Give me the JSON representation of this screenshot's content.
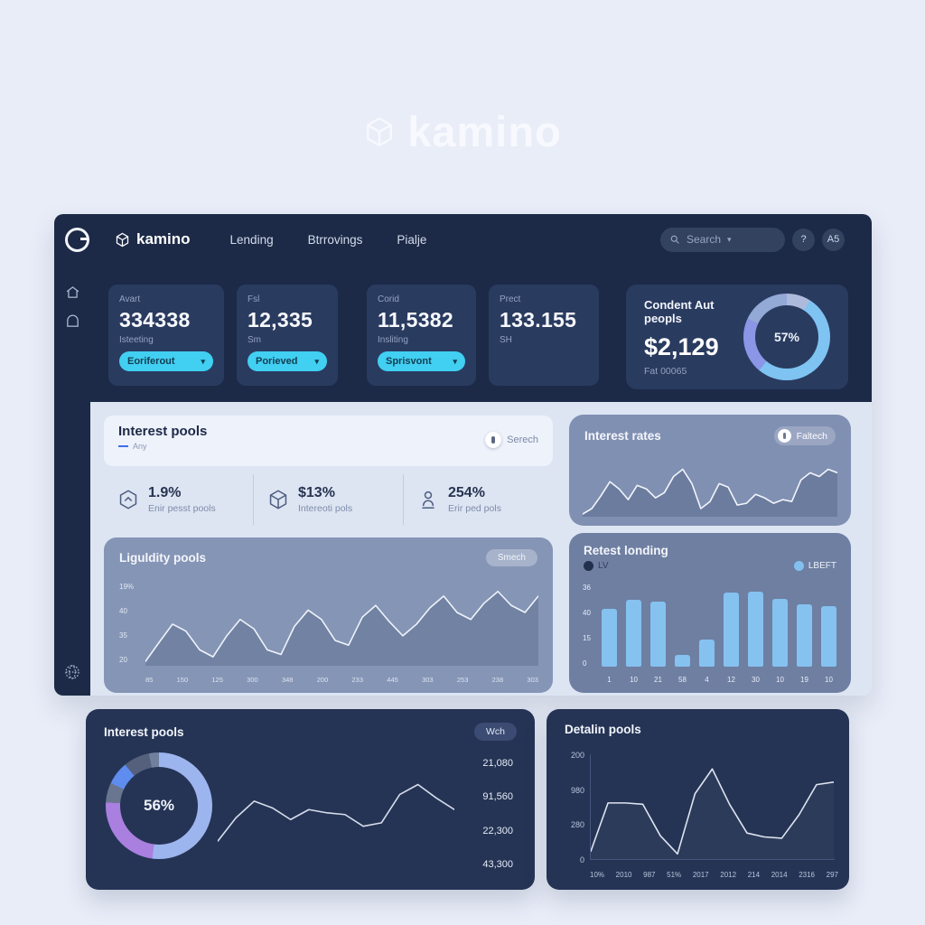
{
  "page": {
    "watermark_brand": "kamino"
  },
  "topnav": {
    "brand": "kamino",
    "items": [
      {
        "label": "Lending"
      },
      {
        "label": "Btrrovings"
      },
      {
        "label": "Pialje"
      }
    ],
    "search": {
      "placeholder": "Search"
    },
    "help_label": "?",
    "avatar_label": "A5"
  },
  "stat_cards": [
    {
      "label": "Avart",
      "value": "334338",
      "sub": "Isteeting",
      "select": "Eoriferout"
    },
    {
      "label": "Fsl",
      "value": "12,335",
      "sub": "Sm",
      "select": "Porieved"
    },
    {
      "label": "Corid",
      "value": "11,5382",
      "sub": "Insliting",
      "select": "Sprisvont"
    },
    {
      "label": "Prect",
      "value": "133.155",
      "sub": "SH"
    }
  ],
  "summary_card": {
    "title": "Condent Aut peopls",
    "value": "$2,129",
    "sub": "Fat 00065",
    "donut": {
      "label": "57%",
      "segments": [
        {
          "color": "#aebadc",
          "pct": 9
        },
        {
          "color": "#7ec3f2",
          "pct": 52
        },
        {
          "color": "#8b96e6",
          "pct": 21
        },
        {
          "color": "#93a9d6",
          "pct": 18
        }
      ]
    }
  },
  "interest_pools_panel": {
    "title": "Interest pools",
    "subtitle": "Any",
    "action": "Serech",
    "stats": [
      {
        "icon": "hexagon-icon",
        "value": "1.9%",
        "label": "Enir pesst pools"
      },
      {
        "icon": "cube-icon",
        "value": "$13%",
        "label": "Intereoti pols"
      },
      {
        "icon": "person-icon",
        "value": "254%",
        "label": "Erir ped pols"
      }
    ]
  },
  "interest_rates_card": {
    "title": "Interest rates",
    "action": "Faltech",
    "chart_data": {
      "type": "area",
      "values": [
        8,
        11,
        18,
        26,
        22,
        16,
        24,
        22,
        17,
        20,
        29,
        33,
        25,
        11,
        15,
        25,
        23,
        13,
        14,
        19,
        17,
        14,
        16,
        15,
        27,
        31,
        29,
        33,
        31
      ],
      "stroke": "#f2f5fb"
    }
  },
  "liquidity_pools_card": {
    "title": "Liguldity pools",
    "action": "Smech",
    "chart_data": {
      "type": "area",
      "y_ticks": [
        "19%",
        "40",
        "35",
        "20"
      ],
      "x_ticks": [
        "85",
        "150",
        "125",
        "300",
        "348",
        "200",
        "233",
        "445",
        "303",
        "253",
        "238",
        "303"
      ],
      "values": [
        22,
        30,
        38,
        35,
        27,
        24,
        33,
        40,
        36,
        27,
        25,
        37,
        44,
        40,
        31,
        29,
        41,
        46,
        39,
        33,
        38,
        45,
        50,
        43,
        40,
        47,
        52,
        46,
        43,
        50
      ]
    }
  },
  "retest_londing_card": {
    "title": "Retest londing",
    "legend": [
      {
        "label": "LV",
        "color": "#23304d"
      },
      {
        "label": "LBEFT",
        "color": "#82c1ef"
      }
    ],
    "chart_data": {
      "type": "bar",
      "y_ticks": [
        "36",
        "40",
        "15",
        "0"
      ],
      "categories": [
        "1",
        "10",
        "21",
        "58",
        "4",
        "12",
        "30",
        "10",
        "19",
        "10"
      ],
      "values": [
        40,
        46,
        45,
        8,
        19,
        51,
        52,
        47,
        43,
        42
      ],
      "ylim": [
        0,
        56
      ]
    }
  },
  "interest_pools_card": {
    "title": "Interest pools",
    "action": "Wch",
    "donut": {
      "label": "56%",
      "segments": [
        {
          "color": "#9db5ee",
          "pct": 52
        },
        {
          "color": "#a97fe0",
          "pct": 24
        },
        {
          "color": "#6a7590",
          "pct": 6
        },
        {
          "color": "#5f8cef",
          "pct": 7
        },
        {
          "color": "#55617c",
          "pct": 8
        },
        {
          "color": "#72809f",
          "pct": 3
        }
      ]
    },
    "right_labels": [
      "21,080",
      "91,560",
      "22,300",
      "43,300"
    ],
    "chart_data": {
      "type": "line",
      "values": [
        30,
        44,
        54,
        50,
        43,
        49,
        47,
        46,
        39,
        41,
        58,
        64,
        56,
        49
      ]
    }
  },
  "detalin_pools_card": {
    "title": "Detalin pools",
    "chart_data": {
      "type": "line",
      "y_ticks": [
        "200",
        "980",
        "280",
        "0"
      ],
      "x_ticks": [
        "10%",
        "2010",
        "987",
        "51%",
        "2017",
        "2012",
        "214",
        "2014",
        "2316",
        "297"
      ],
      "values": [
        33,
        70,
        70,
        69,
        45,
        31,
        77,
        96,
        69,
        47,
        44,
        43,
        61,
        84,
        86
      ]
    }
  }
}
